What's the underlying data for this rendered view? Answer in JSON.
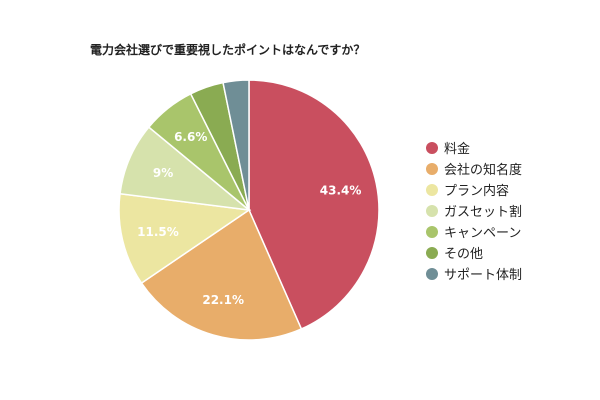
{
  "chart_data": {
    "type": "pie",
    "title": "電力会社選びで重要視したポイントはなんですか？",
    "categories": [
      "料金",
      "会社の知名度",
      "プラン内容",
      "ガスセット割",
      "キャンペーン",
      "その他",
      "サポート体制"
    ],
    "values": [
      43.4,
      22.1,
      11.5,
      9,
      6.6,
      4.2,
      3.2
    ],
    "data_labels": [
      "43.4%",
      "22.1%",
      "11.5%",
      "9%",
      "6.6%",
      "",
      ""
    ],
    "colors": [
      "#c94f5f",
      "#e8ad6a",
      "#ece6a1",
      "#d6e2ac",
      "#a9c56b",
      "#8aab52",
      "#6f8e96"
    ],
    "legend_position": "right",
    "start_angle": "12 o'clock, clockwise"
  }
}
